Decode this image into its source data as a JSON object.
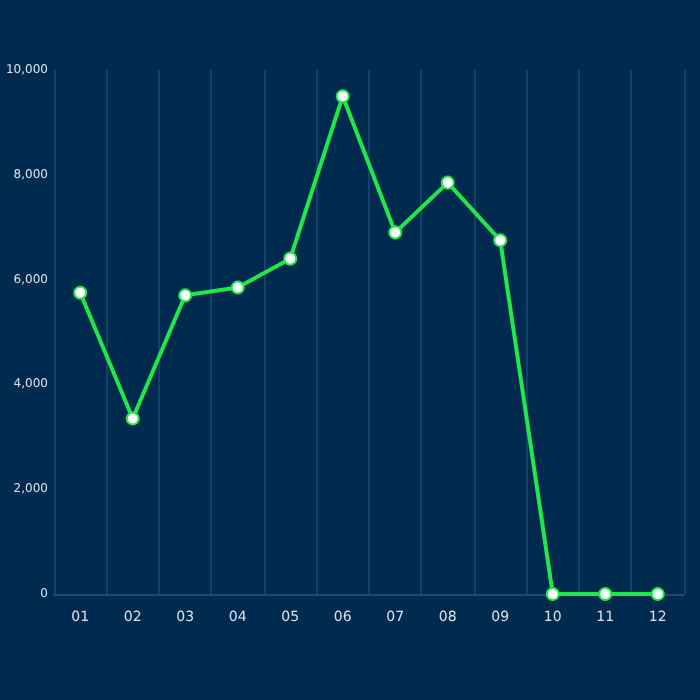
{
  "chart_data": {
    "type": "line",
    "categories": [
      "01",
      "02",
      "03",
      "04",
      "05",
      "06",
      "07",
      "08",
      "09",
      "10",
      "11",
      "12"
    ],
    "series": [
      {
        "color": "#1ee84a",
        "values": [
          5750,
          3350,
          5700,
          5850,
          6400,
          9500,
          6900,
          7850,
          6750,
          0,
          0,
          0
        ]
      }
    ],
    "ylim": [
      0,
      10000
    ],
    "yticks": [
      0,
      {
        "value": 2000,
        "label": "2,000"
      },
      {
        "value": 4000,
        "label": "4,000"
      },
      {
        "value": 6000,
        "label": "6,000"
      },
      {
        "value": 8000,
        "label": "8,000"
      },
      {
        "value": 10000,
        "label": "10,000"
      }
    ],
    "grid": "x",
    "marker": "circle",
    "line_style": "solid"
  }
}
